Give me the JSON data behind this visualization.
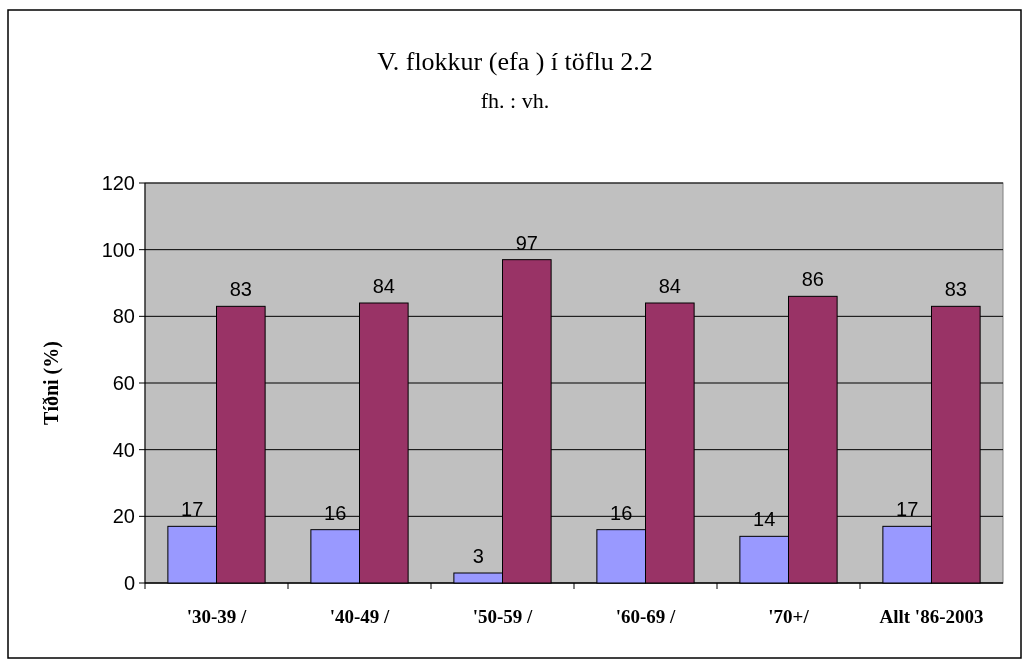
{
  "chart_data": {
    "type": "bar",
    "title": "V. flokkur (efa ) í töflu 2.2",
    "subtitle": "fh. : vh.",
    "ylabel": "Tíðni (%)",
    "categories": [
      "'30-39 /",
      "'40-49 /",
      "'50-59 /",
      "'60-69 /",
      "'70+/",
      "Allt '86-2003"
    ],
    "series": [
      {
        "color": "#9999ff",
        "values": [
          17,
          16,
          3,
          16,
          14,
          17
        ]
      },
      {
        "color": "#993366",
        "values": [
          83,
          84,
          97,
          84,
          86,
          83
        ]
      }
    ],
    "ylim": [
      0,
      120
    ],
    "yticks": [
      0,
      20,
      40,
      60,
      80,
      100,
      120
    ],
    "grid": "y",
    "data_labels": true
  }
}
